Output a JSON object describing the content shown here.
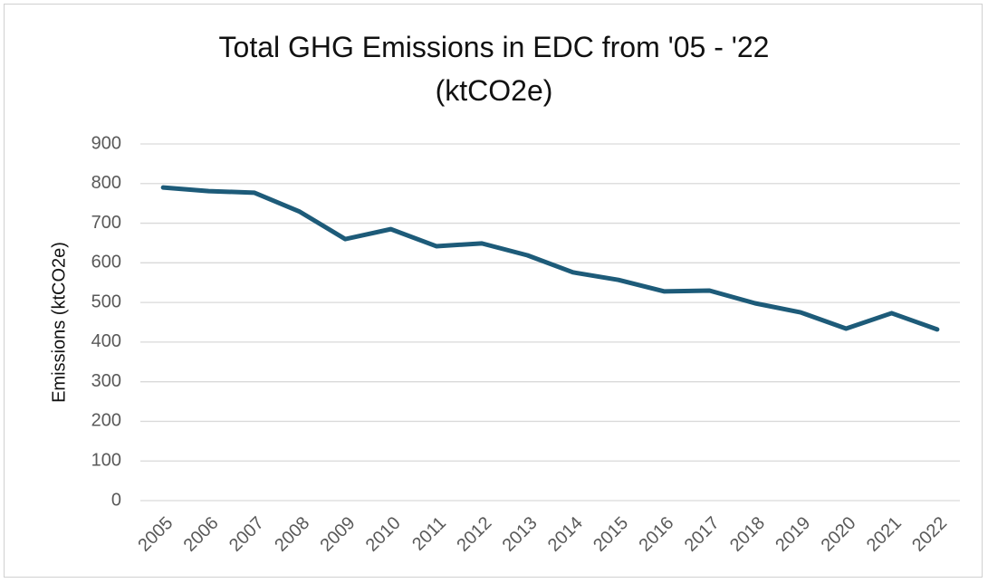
{
  "chart_data": {
    "type": "line",
    "title": "Total GHG Emissions in EDC from '05 - '22 (ktCO2e)",
    "y_label": "Emissions (ktCO2e)",
    "categories": [
      "2005",
      "2006",
      "2007",
      "2008",
      "2009",
      "2010",
      "2011",
      "2012",
      "2013",
      "2014",
      "2015",
      "2016",
      "2017",
      "2018",
      "2019",
      "2020",
      "2021",
      "2022"
    ],
    "series": [
      {
        "name": "Emissions",
        "color": "#1d5b79",
        "values": [
          790,
          781,
          777,
          729,
          660,
          685,
          642,
          649,
          619,
          576,
          557,
          528,
          530,
          498,
          475,
          434,
          473,
          432
        ]
      }
    ],
    "ylim": [
      0,
      900
    ],
    "yticks": [
      0,
      100,
      200,
      300,
      400,
      500,
      600,
      700,
      800,
      900
    ],
    "grid": true
  }
}
